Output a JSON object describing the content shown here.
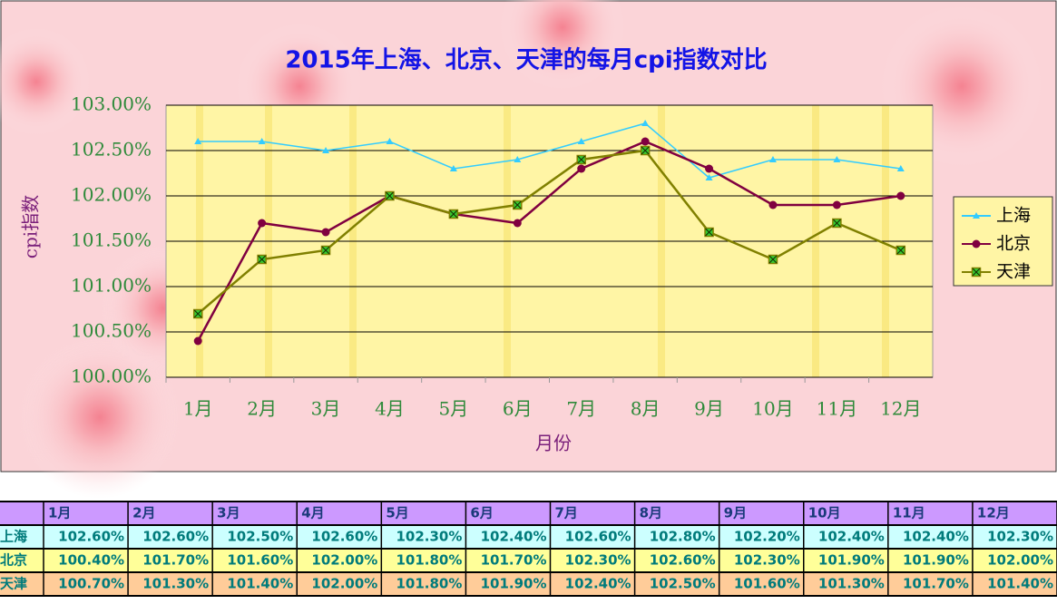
{
  "chart_data": {
    "type": "line",
    "title": "2015年上海、北京、天津的每月cpi指数对比",
    "x_label": "月份",
    "y_label": "cpi指数",
    "categories": [
      "1月",
      "2月",
      "3月",
      "4月",
      "5月",
      "6月",
      "7月",
      "8月",
      "9月",
      "10月",
      "11月",
      "12月"
    ],
    "ylim": [
      100,
      103
    ],
    "yticks": [
      {
        "value": 100,
        "label": "100.00%"
      },
      {
        "value": 100.5,
        "label": "100.50%"
      },
      {
        "value": 101,
        "label": "101.00%"
      },
      {
        "value": 101.5,
        "label": "101.50%"
      },
      {
        "value": 102,
        "label": "102.00%"
      },
      {
        "value": 102.5,
        "label": "102.50%"
      },
      {
        "value": 103,
        "label": "103.00%"
      }
    ],
    "grid": true,
    "legend": "right",
    "series": [
      {
        "name": "上海",
        "color": "#33ccff",
        "marker": "triangle",
        "values": [
          102.6,
          102.6,
          102.5,
          102.6,
          102.3,
          102.4,
          102.6,
          102.8,
          102.2,
          102.4,
          102.4,
          102.3
        ],
        "value_labels": [
          "102.60%",
          "102.60%",
          "102.50%",
          "102.60%",
          "102.30%",
          "102.40%",
          "102.60%",
          "102.80%",
          "102.20%",
          "102.40%",
          "102.40%",
          "102.30%"
        ],
        "row_color": "#ccffff"
      },
      {
        "name": "北京",
        "color": "#800040",
        "marker": "circle",
        "values": [
          100.4,
          101.7,
          101.6,
          102.0,
          101.8,
          101.7,
          102.3,
          102.6,
          102.3,
          101.9,
          101.9,
          102.0
        ],
        "value_labels": [
          "100.40%",
          "101.70%",
          "101.60%",
          "102.00%",
          "101.80%",
          "101.70%",
          "102.30%",
          "102.60%",
          "102.30%",
          "101.90%",
          "101.90%",
          "102.00%"
        ],
        "row_color": "#ffff99"
      },
      {
        "name": "天津",
        "color": "#808000",
        "marker": "square",
        "values": [
          100.7,
          101.3,
          101.4,
          102.0,
          101.8,
          101.9,
          102.4,
          102.5,
          101.6,
          101.3,
          101.7,
          101.4
        ],
        "value_labels": [
          "100.70%",
          "101.30%",
          "101.40%",
          "102.00%",
          "101.80%",
          "101.90%",
          "102.40%",
          "102.50%",
          "101.60%",
          "101.30%",
          "101.70%",
          "101.40%"
        ],
        "row_color": "#ffcc99"
      }
    ]
  }
}
